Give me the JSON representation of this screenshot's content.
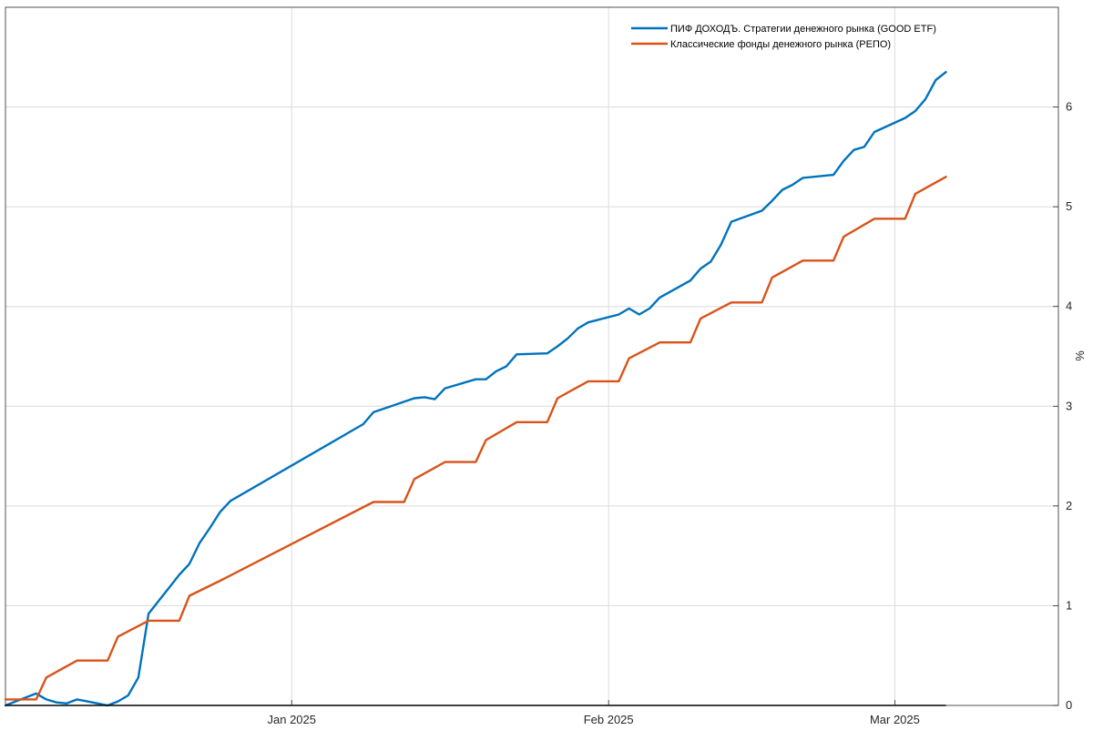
{
  "chart_data": {
    "type": "line",
    "ylabel": "%",
    "ylim": [
      0,
      7
    ],
    "yticks": [
      0,
      1,
      2,
      3,
      4,
      5,
      6
    ],
    "xticks": [
      {
        "date": "2025-01-01",
        "label": "Jan 2025"
      },
      {
        "date": "2025-02-01",
        "label": "Feb 2025"
      },
      {
        "date": "2025-03-01",
        "label": "Mar 2025"
      }
    ],
    "xlim": [
      "2024-12-04",
      "2025-03-17"
    ],
    "grid": true,
    "legend_position": "top-right",
    "colors": {
      "good_etf": "#0072BD",
      "repo": "#D95319",
      "grid": "#DCDCDC",
      "axis": "#262626"
    },
    "series": [
      {
        "name": "ПИФ ДОХОДЪ. Стратегии денежного рынка (GOOD ETF)",
        "color": "#0072BD",
        "points": [
          [
            "2024-12-04",
            0.0
          ],
          [
            "2024-12-05",
            0.04
          ],
          [
            "2024-12-06",
            0.08
          ],
          [
            "2024-12-07",
            0.12
          ],
          [
            "2024-12-08",
            0.06
          ],
          [
            "2024-12-09",
            0.03
          ],
          [
            "2024-12-10",
            0.02
          ],
          [
            "2024-12-11",
            0.06
          ],
          [
            "2024-12-12",
            0.04
          ],
          [
            "2024-12-13",
            0.02
          ],
          [
            "2024-12-14",
            0.0
          ],
          [
            "2024-12-15",
            0.04
          ],
          [
            "2024-12-16",
            0.1
          ],
          [
            "2024-12-17",
            0.28
          ],
          [
            "2024-12-18",
            0.92
          ],
          [
            "2024-12-19",
            1.05
          ],
          [
            "2024-12-20",
            1.18
          ],
          [
            "2024-12-21",
            1.31
          ],
          [
            "2024-12-22",
            1.42
          ],
          [
            "2024-12-23",
            1.63
          ],
          [
            "2024-12-24",
            1.78
          ],
          [
            "2024-12-25",
            1.94
          ],
          [
            "2024-12-26",
            2.05
          ],
          [
            "2025-01-08",
            2.82
          ],
          [
            "2025-01-09",
            2.94
          ],
          [
            "2025-01-13",
            3.08
          ],
          [
            "2025-01-14",
            3.09
          ],
          [
            "2025-01-15",
            3.07
          ],
          [
            "2025-01-16",
            3.18
          ],
          [
            "2025-01-19",
            3.27
          ],
          [
            "2025-01-20",
            3.27
          ],
          [
            "2025-01-21",
            3.35
          ],
          [
            "2025-01-22",
            3.4
          ],
          [
            "2025-01-23",
            3.52
          ],
          [
            "2025-01-26",
            3.53
          ],
          [
            "2025-01-27",
            3.6
          ],
          [
            "2025-01-28",
            3.68
          ],
          [
            "2025-01-29",
            3.78
          ],
          [
            "2025-01-30",
            3.84
          ],
          [
            "2025-02-02",
            3.92
          ],
          [
            "2025-02-03",
            3.98
          ],
          [
            "2025-02-04",
            3.92
          ],
          [
            "2025-02-05",
            3.98
          ],
          [
            "2025-02-06",
            4.09
          ],
          [
            "2025-02-09",
            4.26
          ],
          [
            "2025-02-10",
            4.38
          ],
          [
            "2025-02-11",
            4.45
          ],
          [
            "2025-02-12",
            4.62
          ],
          [
            "2025-02-13",
            4.85
          ],
          [
            "2025-02-16",
            4.96
          ],
          [
            "2025-02-17",
            5.06
          ],
          [
            "2025-02-18",
            5.17
          ],
          [
            "2025-02-19",
            5.22
          ],
          [
            "2025-02-20",
            5.29
          ],
          [
            "2025-02-23",
            5.32
          ],
          [
            "2025-02-24",
            5.46
          ],
          [
            "2025-02-25",
            5.57
          ],
          [
            "2025-02-26",
            5.6
          ],
          [
            "2025-02-27",
            5.75
          ],
          [
            "2025-03-02",
            5.89
          ],
          [
            "2025-03-03",
            5.96
          ],
          [
            "2025-03-04",
            6.08
          ],
          [
            "2025-03-05",
            6.27
          ],
          [
            "2025-03-06",
            6.35
          ]
        ]
      },
      {
        "name": "Классические фонды денежного рынка (РЕПО)",
        "color": "#D95319",
        "points": [
          [
            "2024-12-04",
            0.06
          ],
          [
            "2024-12-07",
            0.06
          ],
          [
            "2024-12-08",
            0.28
          ],
          [
            "2024-12-11",
            0.45
          ],
          [
            "2024-12-14",
            0.45
          ],
          [
            "2024-12-15",
            0.69
          ],
          [
            "2024-12-18",
            0.85
          ],
          [
            "2024-12-21",
            0.85
          ],
          [
            "2024-12-22",
            1.1
          ],
          [
            "2024-12-25",
            1.25
          ],
          [
            "2025-01-09",
            2.04
          ],
          [
            "2025-01-12",
            2.04
          ],
          [
            "2025-01-13",
            2.27
          ],
          [
            "2025-01-16",
            2.44
          ],
          [
            "2025-01-19",
            2.44
          ],
          [
            "2025-01-20",
            2.66
          ],
          [
            "2025-01-23",
            2.84
          ],
          [
            "2025-01-26",
            2.84
          ],
          [
            "2025-01-27",
            3.08
          ],
          [
            "2025-01-30",
            3.25
          ],
          [
            "2025-02-02",
            3.25
          ],
          [
            "2025-02-03",
            3.48
          ],
          [
            "2025-02-06",
            3.64
          ],
          [
            "2025-02-09",
            3.64
          ],
          [
            "2025-02-10",
            3.88
          ],
          [
            "2025-02-13",
            4.04
          ],
          [
            "2025-02-16",
            4.04
          ],
          [
            "2025-02-17",
            4.29
          ],
          [
            "2025-02-20",
            4.46
          ],
          [
            "2025-02-23",
            4.46
          ],
          [
            "2025-02-24",
            4.7
          ],
          [
            "2025-02-27",
            4.88
          ],
          [
            "2025-03-02",
            4.88
          ],
          [
            "2025-03-03",
            5.13
          ],
          [
            "2025-03-06",
            5.3
          ]
        ]
      }
    ]
  }
}
